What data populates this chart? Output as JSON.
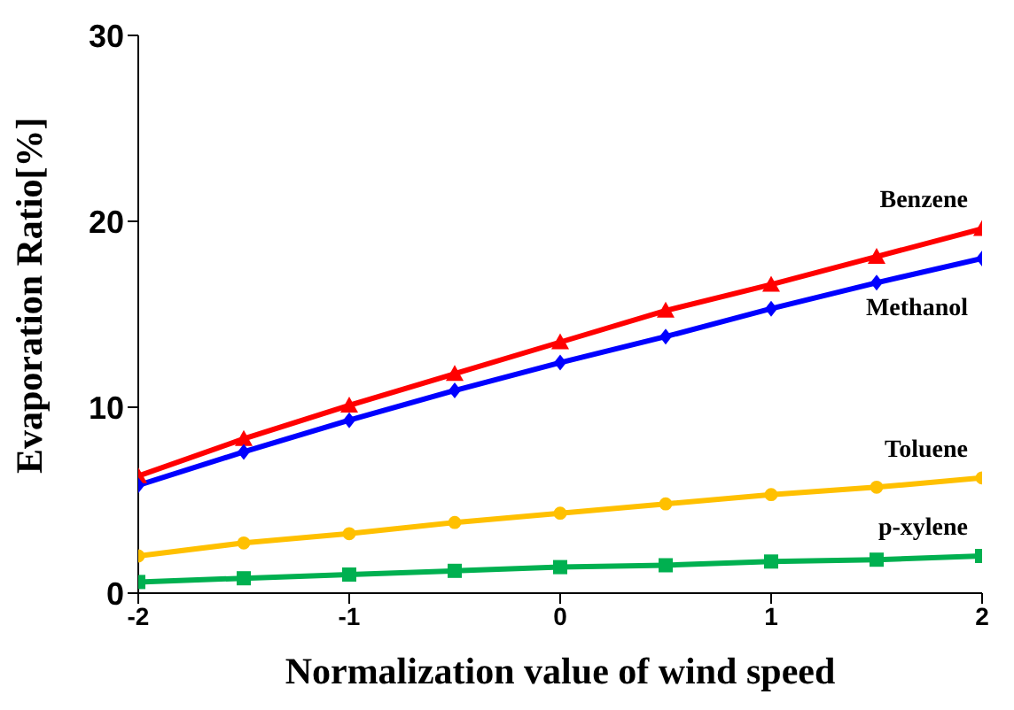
{
  "chart_data": {
    "type": "line",
    "xlabel": "Normalization value of wind speed",
    "ylabel": "Evaporation Ratio[%]",
    "x": [
      -2,
      -1.5,
      -1,
      -0.5,
      0,
      0.5,
      1,
      1.5,
      2
    ],
    "xlim": [
      -2,
      2
    ],
    "xticks": [
      -2,
      -1,
      0,
      1,
      2
    ],
    "ylim": [
      0,
      30
    ],
    "yticks": [
      0,
      10,
      20,
      30
    ],
    "grid": false,
    "legend": false,
    "series": [
      {
        "name": "Benzene",
        "color": "#ff0000",
        "marker": "triangle",
        "values": [
          6.3,
          8.3,
          10.1,
          11.8,
          13.5,
          15.2,
          16.6,
          18.1,
          19.6
        ]
      },
      {
        "name": "Methanol",
        "color": "#0000ff",
        "marker": "diamond",
        "values": [
          5.8,
          7.6,
          9.3,
          10.9,
          12.4,
          13.8,
          15.3,
          16.7,
          18.0
        ]
      },
      {
        "name": "Toluene",
        "color": "#ffc000",
        "marker": "circle",
        "values": [
          2.0,
          2.7,
          3.2,
          3.8,
          4.3,
          4.8,
          5.3,
          5.7,
          6.2
        ]
      },
      {
        "name": "p-xylene",
        "color": "#00b050",
        "marker": "square",
        "values": [
          0.6,
          0.8,
          1.0,
          1.2,
          1.4,
          1.5,
          1.7,
          1.8,
          2.0
        ]
      }
    ]
  }
}
